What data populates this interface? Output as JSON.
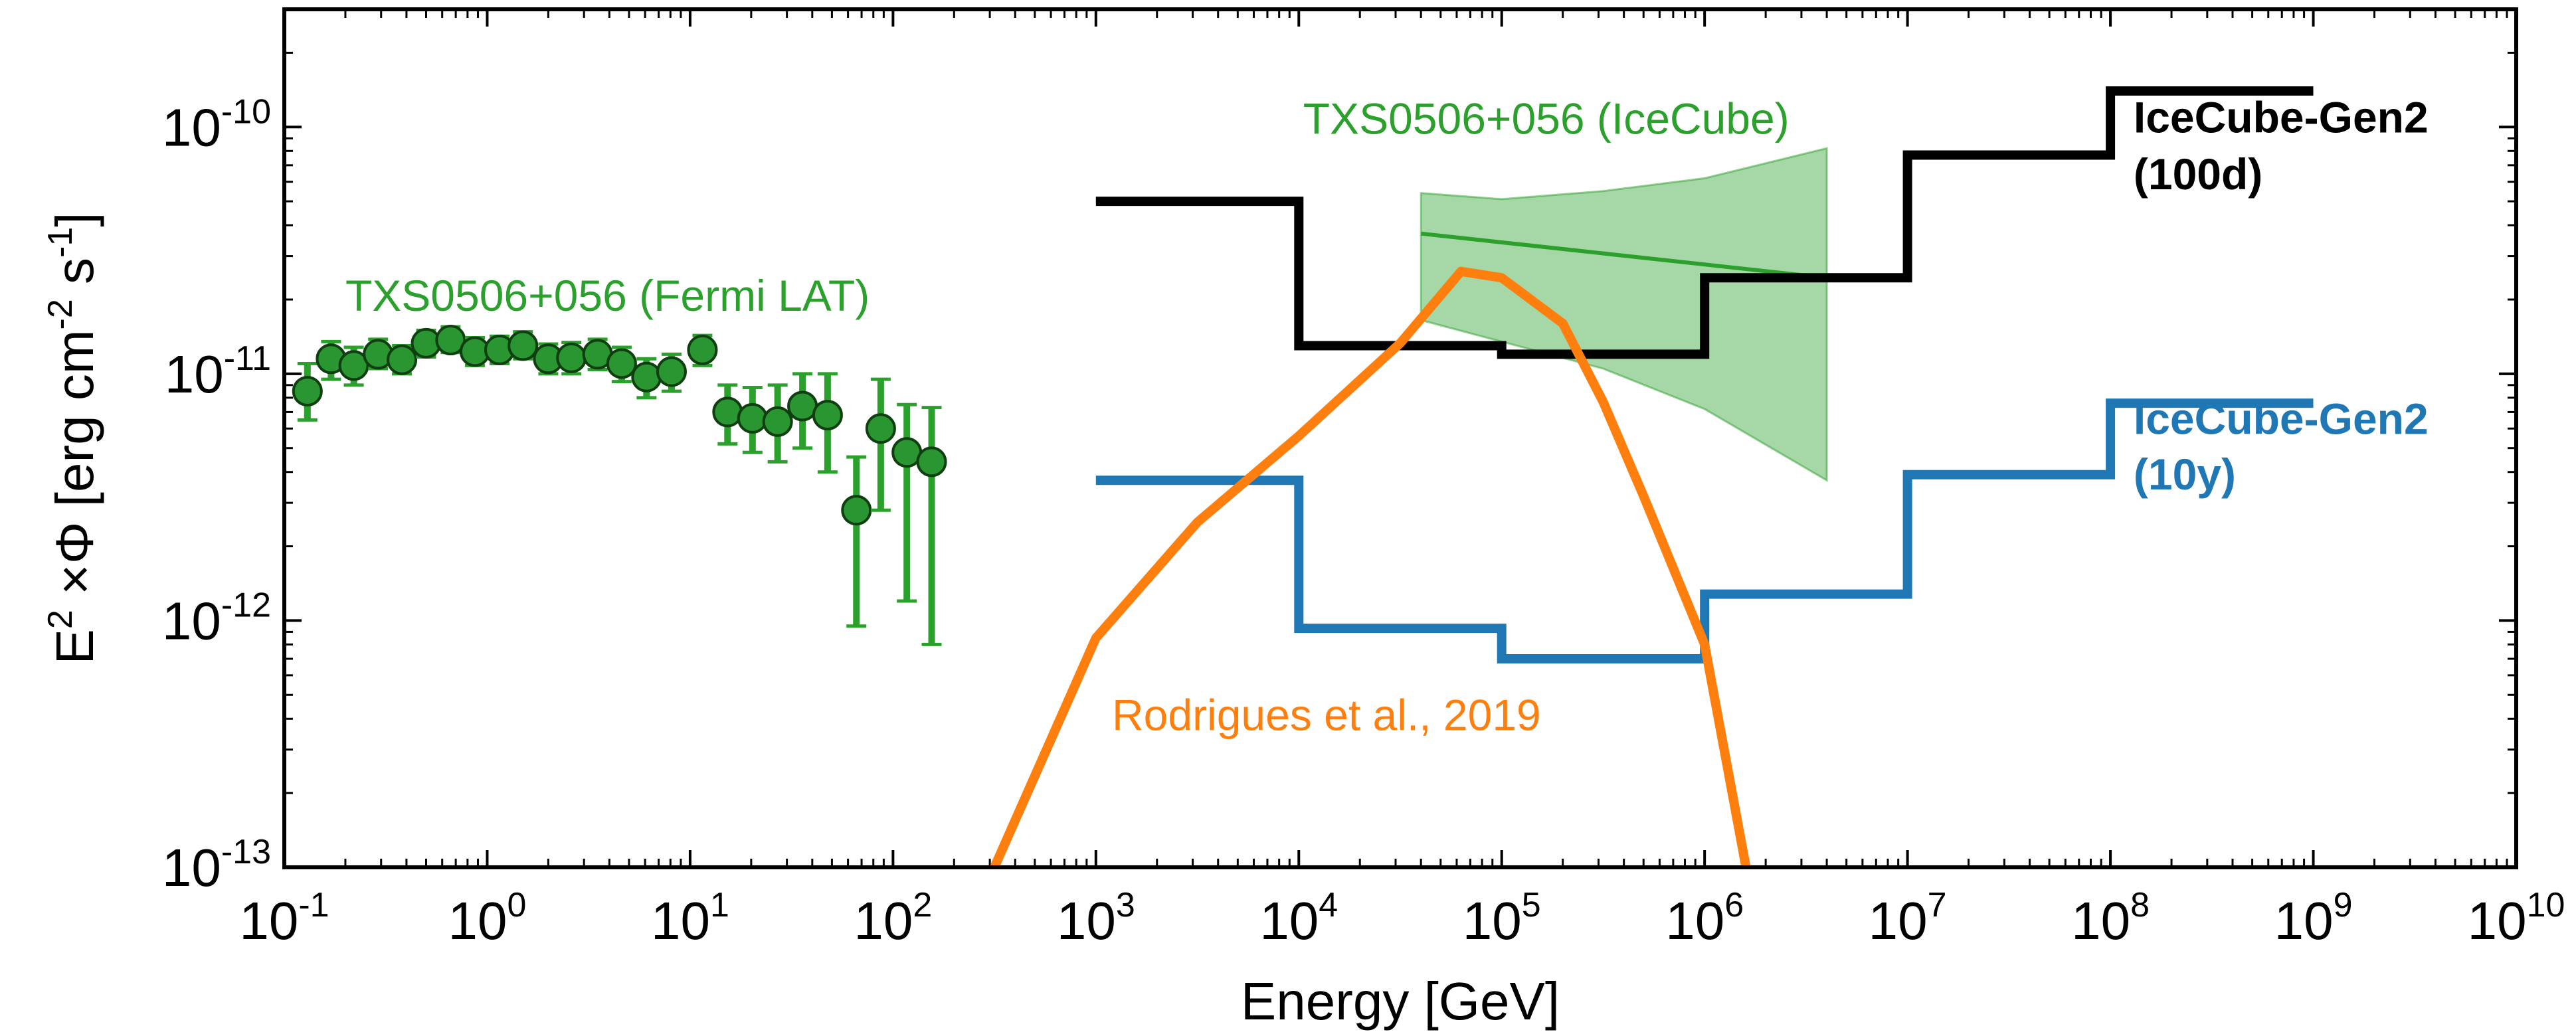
{
  "chart_data": {
    "type": "line",
    "scale": {
      "x": "log",
      "y": "log"
    },
    "xlim": [
      0.1,
      10000000000
    ],
    "ylim": [
      1e-13,
      3e-10
    ],
    "xlabel": "Energy [GeV]",
    "ylabel": {
      "base": "E",
      "exp": "2",
      "mid": " ×Φ [erg cm",
      "exp2": "-2",
      "mid2": " s",
      "exp3": "-1",
      "end": "]"
    },
    "x_ticks": [
      {
        "value": 0.1,
        "base": "10",
        "exp": "-1"
      },
      {
        "value": 1,
        "base": "10",
        "exp": "0"
      },
      {
        "value": 10,
        "base": "10",
        "exp": "1"
      },
      {
        "value": 100,
        "base": "10",
        "exp": "2"
      },
      {
        "value": 1000,
        "base": "10",
        "exp": "3"
      },
      {
        "value": 10000,
        "base": "10",
        "exp": "4"
      },
      {
        "value": 100000,
        "base": "10",
        "exp": "5"
      },
      {
        "value": 1000000,
        "base": "10",
        "exp": "6"
      },
      {
        "value": 10000000,
        "base": "10",
        "exp": "7"
      },
      {
        "value": 100000000,
        "base": "10",
        "exp": "8"
      },
      {
        "value": 1000000000,
        "base": "10",
        "exp": "9"
      },
      {
        "value": 10000000000,
        "base": "10",
        "exp": "10"
      }
    ],
    "y_ticks": [
      {
        "value": 1e-13,
        "base": "10",
        "exp": "-13"
      },
      {
        "value": 1e-12,
        "base": "10",
        "exp": "-12"
      },
      {
        "value": 1e-11,
        "base": "10",
        "exp": "-11"
      },
      {
        "value": 1e-10,
        "base": "10",
        "exp": "-10"
      }
    ],
    "series": [
      {
        "name": "TXS0506+056 (Fermi LAT)",
        "kind": "errorbar-scatter",
        "color": "#2ca02c",
        "points": [
          {
            "x": 0.13,
            "y": 8.5e-12,
            "lo": 6.5e-12,
            "hi": 1.1e-11
          },
          {
            "x": 0.17,
            "y": 1.15e-11,
            "lo": 9.5e-12,
            "hi": 1.35e-11
          },
          {
            "x": 0.22,
            "y": 1.08e-11,
            "lo": 9e-12,
            "hi": 1.28e-11
          },
          {
            "x": 0.29,
            "y": 1.2e-11,
            "lo": 1.05e-11,
            "hi": 1.38e-11
          },
          {
            "x": 0.38,
            "y": 1.14e-11,
            "lo": 1e-11,
            "hi": 1.3e-11
          },
          {
            "x": 0.5,
            "y": 1.33e-11,
            "lo": 1.17e-11,
            "hi": 1.5e-11
          },
          {
            "x": 0.66,
            "y": 1.37e-11,
            "lo": 1.22e-11,
            "hi": 1.55e-11
          },
          {
            "x": 0.87,
            "y": 1.23e-11,
            "lo": 1.08e-11,
            "hi": 1.4e-11
          },
          {
            "x": 1.15,
            "y": 1.25e-11,
            "lo": 1.1e-11,
            "hi": 1.42e-11
          },
          {
            "x": 1.5,
            "y": 1.3e-11,
            "lo": 1.15e-11,
            "hi": 1.48e-11
          },
          {
            "x": 2.0,
            "y": 1.15e-11,
            "lo": 1e-11,
            "hi": 1.32e-11
          },
          {
            "x": 2.6,
            "y": 1.16e-11,
            "lo": 1e-11,
            "hi": 1.34e-11
          },
          {
            "x": 3.5,
            "y": 1.2e-11,
            "lo": 1.04e-11,
            "hi": 1.38e-11
          },
          {
            "x": 4.6,
            "y": 1.1e-11,
            "lo": 9.3e-12,
            "hi": 1.28e-11
          },
          {
            "x": 6.1,
            "y": 9.7e-12,
            "lo": 8e-12,
            "hi": 1.15e-11
          },
          {
            "x": 8.1,
            "y": 1.02e-11,
            "lo": 8.5e-12,
            "hi": 1.2e-11
          },
          {
            "x": 11.5,
            "y": 1.25e-11,
            "lo": 1.08e-11,
            "hi": 1.43e-11
          },
          {
            "x": 15.3,
            "y": 7e-12,
            "lo": 5.2e-12,
            "hi": 9e-12
          },
          {
            "x": 20.3,
            "y": 6.6e-12,
            "lo": 4.8e-12,
            "hi": 8.8e-12
          },
          {
            "x": 27,
            "y": 6.4e-12,
            "lo": 4.4e-12,
            "hi": 9e-12
          },
          {
            "x": 35.8,
            "y": 7.4e-12,
            "lo": 5e-12,
            "hi": 1e-11
          },
          {
            "x": 47.6,
            "y": 6.8e-12,
            "lo": 4e-12,
            "hi": 1e-11
          },
          {
            "x": 66,
            "y": 2.8e-12,
            "lo": 9.5e-13,
            "hi": 4.6e-12
          },
          {
            "x": 87,
            "y": 6e-12,
            "lo": 2.8e-12,
            "hi": 9.5e-12
          },
          {
            "x": 117,
            "y": 4.8e-12,
            "lo": 1.2e-12,
            "hi": 7.5e-12
          },
          {
            "x": 155,
            "y": 4.4e-12,
            "lo": 8e-13,
            "hi": 7.3e-12
          }
        ]
      },
      {
        "name": "TXS0506+056 (IceCube)",
        "kind": "band-with-line",
        "color": "#2ca02c",
        "band_upper": [
          [
            40000,
            5.4e-11
          ],
          [
            100000,
            5.1e-11
          ],
          [
            316000,
            5.5e-11
          ],
          [
            1000000,
            6.2e-11
          ],
          [
            4000000,
            8.2e-11
          ]
        ],
        "band_lower": [
          [
            40000,
            1.65e-11
          ],
          [
            100000,
            1.35e-11
          ],
          [
            316000,
            1.05e-11
          ],
          [
            1000000,
            7.2e-12
          ],
          [
            4000000,
            3.7e-12
          ]
        ],
        "line": [
          [
            40000,
            3.7e-11
          ],
          [
            4000000,
            2.45e-11
          ]
        ]
      },
      {
        "name": "IceCube-Gen2 (100d)",
        "kind": "step",
        "color": "#000000",
        "edges": [
          1000,
          10000,
          100000,
          1000000,
          10000000,
          100000000,
          1000000000
        ],
        "values": [
          5e-11,
          1.3e-11,
          1.2e-11,
          2.45e-11,
          7.7e-11,
          1.4e-10
        ]
      },
      {
        "name": "IceCube-Gen2 (10y)",
        "kind": "step",
        "color": "#1f77b4",
        "edges": [
          1000,
          10000,
          100000,
          1000000,
          10000000,
          100000000,
          1000000000
        ],
        "values": [
          3.7e-12,
          9.3e-13,
          7e-13,
          1.28e-12,
          3.9e-12,
          7.6e-12
        ]
      },
      {
        "name": "Rodrigues et al., 2019",
        "kind": "line",
        "color": "#ff7f0e",
        "points": [
          [
            316,
            1e-13
          ],
          [
            1000,
            8.5e-13
          ],
          [
            3160,
            2.5e-12
          ],
          [
            10000,
            5.6e-12
          ],
          [
            31600,
            1.33e-11
          ],
          [
            63000,
            2.6e-11
          ],
          [
            100000,
            2.45e-11
          ],
          [
            200000,
            1.6e-11
          ],
          [
            316000,
            7.7e-12
          ],
          [
            500000,
            3.2e-12
          ],
          [
            1000000,
            8e-13
          ],
          [
            1600000,
            1e-13
          ]
        ]
      }
    ],
    "annotations": [
      {
        "text": "TXS0506+056 (Fermi LAT)",
        "color": "#2ca02c",
        "x": 0.2,
        "y": 1.8e-11,
        "bold": false
      },
      {
        "text": "TXS0506+056 (IceCube)",
        "color": "#2ca02c",
        "x": 10500,
        "y": 9.4e-11,
        "bold": false
      },
      {
        "text": "IceCube-Gen2",
        "color": "#000000",
        "x": 130000000,
        "y": 9.5e-11,
        "bold": true
      },
      {
        "text": "(100d)",
        "color": "#000000",
        "x": 130000000,
        "y": 5.6e-11,
        "bold": true
      },
      {
        "text": "IceCube-Gen2",
        "color": "#1f77b4",
        "x": 130000000,
        "y": 5.7e-12,
        "bold": true
      },
      {
        "text": "(10y)",
        "color": "#1f77b4",
        "x": 130000000,
        "y": 3.4e-12,
        "bold": true
      },
      {
        "text": "Rodrigues et al., 2019",
        "color": "#ff7f0e",
        "x": 1200,
        "y": 3.6e-13,
        "bold": false
      }
    ]
  }
}
